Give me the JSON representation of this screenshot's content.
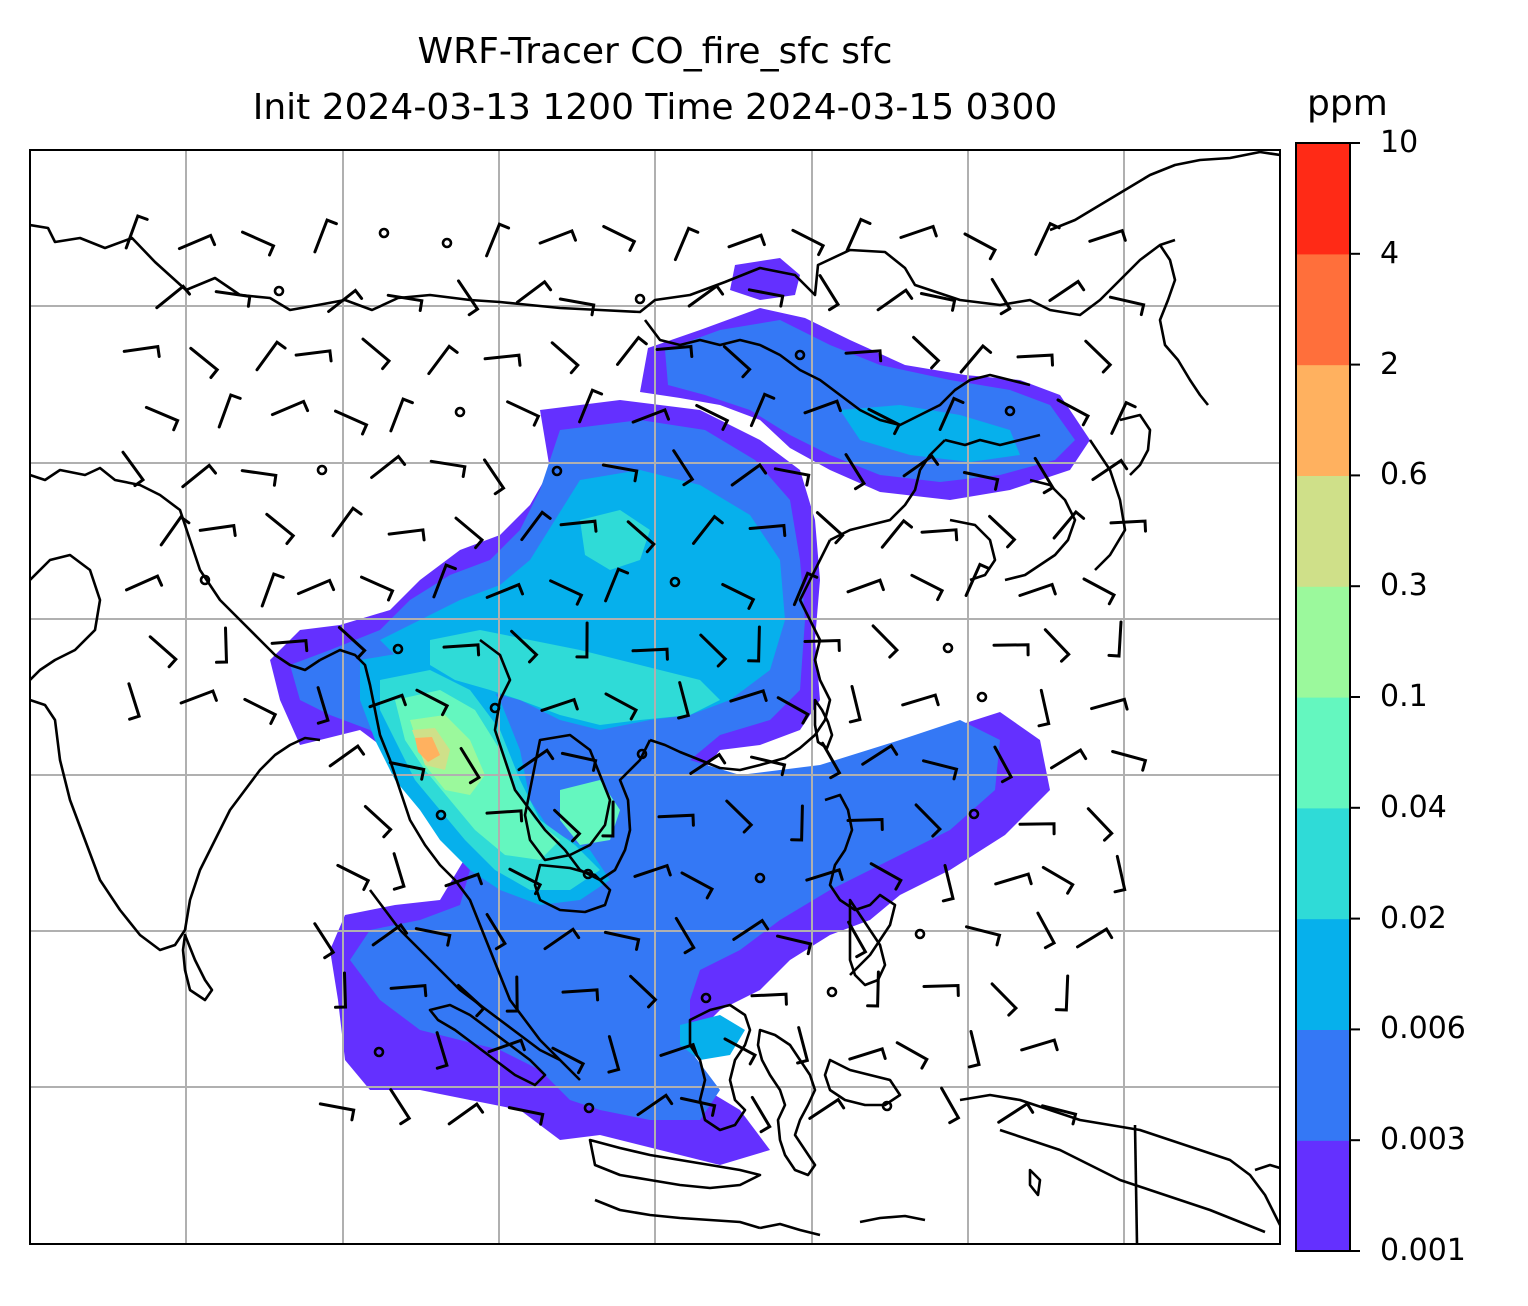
{
  "title": {
    "line1": "WRF-Tracer CO_fire_sfc sfc",
    "line2": "Init 2024-03-13 1200 Time 2024-03-15 0300"
  },
  "colorbar": {
    "unit": "ppm",
    "levels": [
      "0.001",
      "0.003",
      "0.006",
      "0.02",
      "0.04",
      "0.1",
      "0.3",
      "0.6",
      "2",
      "4",
      "10"
    ],
    "colors": [
      "#6430ff",
      "#3478f5",
      "#06b0ec",
      "#2fdbd7",
      "#64f7bf",
      "#9bf99c",
      "#cfe089",
      "#ffb15f",
      "#ff6f3b",
      "#ff2a16"
    ]
  },
  "map": {
    "gridlines": true,
    "coastline_color": "#000000",
    "grid_color": "#b0b0b0",
    "wind_barb_color": "#000000"
  }
}
